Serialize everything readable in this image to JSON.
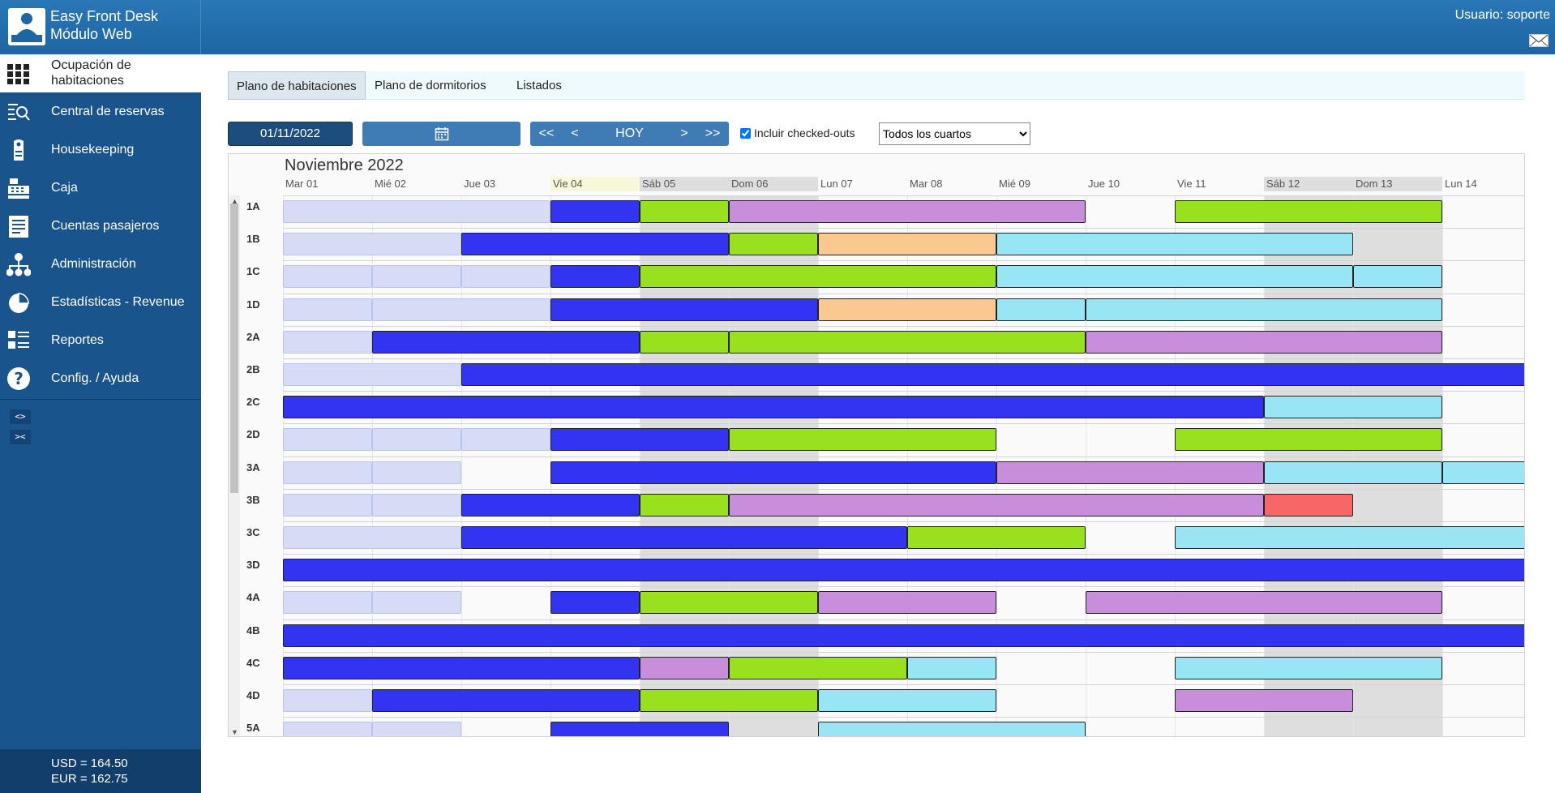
{
  "app": {
    "title_line1": "Easy Front Desk",
    "title_line2": "Módulo Web",
    "user_label": "Usuario: soporte"
  },
  "sidebar": {
    "items": [
      {
        "label": "Ocupación de habitaciones",
        "icon": "grid-icon",
        "active": true
      },
      {
        "label": "Central de reservas",
        "icon": "reservations-search-icon"
      },
      {
        "label": "Housekeeping",
        "icon": "door-hanger-icon"
      },
      {
        "label": "Caja",
        "icon": "cash-register-icon"
      },
      {
        "label": "Cuentas pasajeros",
        "icon": "ledger-icon"
      },
      {
        "label": "Administración",
        "icon": "org-chart-icon"
      },
      {
        "label": "Estadísticas - Revenue",
        "icon": "pie-chart-icon"
      },
      {
        "label": "Reportes",
        "icon": "report-list-icon"
      },
      {
        "label": "Config. / Ayuda",
        "icon": "help-icon"
      }
    ],
    "expand_label": "<>",
    "collapse_label": "><",
    "rates": [
      "USD = 164.50",
      "EUR = 162.75"
    ]
  },
  "tabs": [
    {
      "label": "Plano de habitaciones",
      "active": true
    },
    {
      "label": "Plano de dormitorios"
    },
    {
      "label": "Listados"
    }
  ],
  "toolbar": {
    "date": "01/11/2022",
    "first_label": "<<",
    "prev_label": "<",
    "today_label": "HOY",
    "next_label": ">",
    "last_label": ">>",
    "checked_outs_label": "Incluir checked-outs",
    "checked_outs_checked": true,
    "room_filter": "Todos los cuartos"
  },
  "planner": {
    "month": "Noviembre 2022",
    "days": [
      {
        "label": "Mar 01"
      },
      {
        "label": "Mié 02"
      },
      {
        "label": "Jue 03"
      },
      {
        "label": "Vie 04",
        "today": true
      },
      {
        "label": "Sáb 05",
        "weekend": true
      },
      {
        "label": "Dom 06",
        "weekend": true
      },
      {
        "label": "Lun 07"
      },
      {
        "label": "Mar 08"
      },
      {
        "label": "Mié 09"
      },
      {
        "label": "Jue 10"
      },
      {
        "label": "Vie 11"
      },
      {
        "label": "Sáb 12",
        "weekend": true
      },
      {
        "label": "Dom 13",
        "weekend": true
      },
      {
        "label": "Lun 14"
      }
    ],
    "colors": {
      "past": "#d7dcf6",
      "in_house": "#3333f2",
      "confirmed": "#99e01f",
      "pending": "#c68edb",
      "tentative": "#f9c98f",
      "future": "#98e6f5",
      "blocked": "#f86767",
      "today_header": "#f8f8d8",
      "weekend": "#dedede"
    },
    "rooms": [
      {
        "name": "1A",
        "bookings": [
          [
            0,
            3,
            "past"
          ],
          [
            3,
            4,
            "in_house"
          ],
          [
            4,
            5,
            "confirmed"
          ],
          [
            5,
            9,
            "pending"
          ],
          [
            10,
            13,
            "confirmed"
          ]
        ]
      },
      {
        "name": "1B",
        "bookings": [
          [
            0,
            2,
            "past"
          ],
          [
            2,
            5,
            "in_house"
          ],
          [
            5,
            6,
            "confirmed"
          ],
          [
            6,
            8,
            "tentative"
          ],
          [
            8,
            12,
            "future"
          ]
        ]
      },
      {
        "name": "1C",
        "bookings": [
          [
            0,
            1,
            "past"
          ],
          [
            1,
            2,
            "past"
          ],
          [
            2,
            3,
            "past"
          ],
          [
            3,
            4,
            "in_house"
          ],
          [
            4,
            8,
            "confirmed"
          ],
          [
            8,
            12,
            "future"
          ],
          [
            12,
            13,
            "future"
          ]
        ]
      },
      {
        "name": "1D",
        "bookings": [
          [
            0,
            1,
            "past"
          ],
          [
            1,
            3,
            "past"
          ],
          [
            3,
            6,
            "in_house"
          ],
          [
            6,
            8,
            "tentative"
          ],
          [
            8,
            9,
            "future"
          ],
          [
            9,
            13,
            "future"
          ]
        ]
      },
      {
        "name": "2A",
        "bookings": [
          [
            0,
            1,
            "past"
          ],
          [
            1,
            4,
            "in_house"
          ],
          [
            4,
            5,
            "confirmed"
          ],
          [
            5,
            9,
            "confirmed"
          ],
          [
            9,
            13,
            "pending"
          ]
        ]
      },
      {
        "name": "2B",
        "bookings": [
          [
            0,
            2,
            "past"
          ],
          [
            2,
            14,
            "in_house"
          ]
        ]
      },
      {
        "name": "2C",
        "bookings": [
          [
            0,
            11,
            "in_house"
          ],
          [
            11,
            13,
            "future"
          ]
        ]
      },
      {
        "name": "2D",
        "bookings": [
          [
            0,
            1,
            "past"
          ],
          [
            1,
            2,
            "past"
          ],
          [
            2,
            3,
            "past"
          ],
          [
            3,
            5,
            "in_house"
          ],
          [
            5,
            8,
            "confirmed"
          ],
          [
            10,
            13,
            "confirmed"
          ]
        ]
      },
      {
        "name": "3A",
        "bookings": [
          [
            0,
            1,
            "past"
          ],
          [
            1,
            2,
            "past"
          ],
          [
            3,
            8,
            "in_house"
          ],
          [
            8,
            11,
            "pending"
          ],
          [
            11,
            13,
            "future"
          ],
          [
            13,
            14,
            "future"
          ]
        ]
      },
      {
        "name": "3B",
        "bookings": [
          [
            0,
            1,
            "past"
          ],
          [
            1,
            2,
            "past"
          ],
          [
            2,
            4,
            "in_house"
          ],
          [
            4,
            5,
            "confirmed"
          ],
          [
            5,
            11,
            "pending"
          ],
          [
            11,
            12,
            "blocked"
          ]
        ]
      },
      {
        "name": "3C",
        "bookings": [
          [
            0,
            2,
            "past"
          ],
          [
            2,
            7,
            "in_house"
          ],
          [
            7,
            9,
            "confirmed"
          ],
          [
            10,
            14,
            "future"
          ]
        ]
      },
      {
        "name": "3D",
        "bookings": [
          [
            0,
            14,
            "in_house"
          ]
        ]
      },
      {
        "name": "4A",
        "bookings": [
          [
            0,
            1,
            "past"
          ],
          [
            1,
            2,
            "past"
          ],
          [
            3,
            4,
            "in_house"
          ],
          [
            4,
            6,
            "confirmed"
          ],
          [
            6,
            8,
            "pending"
          ],
          [
            9,
            13,
            "pending"
          ]
        ]
      },
      {
        "name": "4B",
        "bookings": [
          [
            0,
            14,
            "in_house"
          ]
        ]
      },
      {
        "name": "4C",
        "bookings": [
          [
            0,
            4,
            "in_house"
          ],
          [
            4,
            5,
            "pending"
          ],
          [
            5,
            7,
            "confirmed"
          ],
          [
            7,
            8,
            "future"
          ],
          [
            10,
            13,
            "future"
          ]
        ]
      },
      {
        "name": "4D",
        "bookings": [
          [
            0,
            1,
            "past"
          ],
          [
            1,
            4,
            "in_house"
          ],
          [
            4,
            6,
            "confirmed"
          ],
          [
            6,
            8,
            "future"
          ],
          [
            10,
            12,
            "pending"
          ]
        ]
      },
      {
        "name": "5A",
        "bookings": [
          [
            0,
            1,
            "past"
          ],
          [
            1,
            2,
            "past"
          ],
          [
            3,
            5,
            "in_house"
          ],
          [
            6,
            9,
            "future"
          ]
        ]
      }
    ]
  }
}
